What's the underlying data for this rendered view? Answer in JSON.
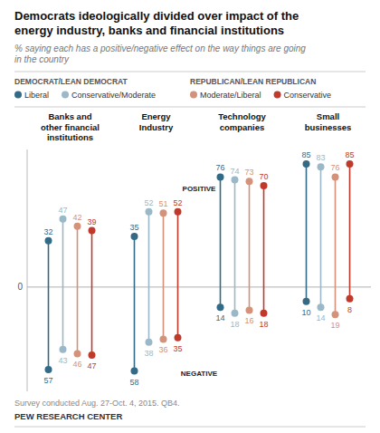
{
  "chart_data": {
    "type": "dumbbell",
    "title": "Democrats ideologically divided over impact of the\nenergy industry, banks and financial institutions",
    "subtitle": "% saying each has a positive/negative effect on the way things are going\nin the country",
    "footnote": "Survey conducted Aug. 27-Oct. 4, 2015. QB4.",
    "source": "PEW RESEARCH CENTER",
    "categories": [
      "Banks and\nother financial\ninstitutions",
      "Energy\nIndustry",
      "Technology\ncompanies",
      "Small\nbusinesses"
    ],
    "series": [
      {
        "name": "Liberal",
        "group": "DEMOCRAT/LEAN DEMOCRAT",
        "color": "#336b87",
        "values": [
          32,
          35,
          76,
          85
        ],
        "negative_values": [
          -57,
          -58,
          -14,
          -10
        ],
        "negative_value_labels": [
          "57",
          "58",
          "14",
          "10"
        ]
      },
      {
        "name": "Conservative/Moderate",
        "group": "DEMOCRAT/LEAN DEMOCRAT",
        "color": "#9ab8c7",
        "values": [
          47,
          52,
          74,
          83
        ],
        "negative_values": [
          -43,
          -38,
          -18,
          -14
        ],
        "negative_value_labels": [
          "43",
          "38",
          "18",
          "14"
        ]
      },
      {
        "name": "Moderate/Liberal",
        "group": "REPUBLICAN/LEAN REPUBLICAN",
        "color": "#d4927a",
        "values": [
          42,
          51,
          73,
          76
        ],
        "negative_values": [
          -46,
          -36,
          -16,
          -19
        ],
        "negative_value_labels": [
          "46",
          "36",
          "16",
          "19"
        ]
      },
      {
        "name": "Conservative",
        "group": "REPUBLICAN/LEAN REPUBLICAN",
        "color": "#c0392b",
        "values": [
          39,
          52,
          70,
          85
        ],
        "negative_values": [
          -47,
          -35,
          -18,
          -8
        ],
        "negative_value_labels": [
          "47",
          "35",
          "18",
          "8"
        ]
      }
    ],
    "annotations": [
      "POSITIVE",
      "NEGATIVE"
    ],
    "ylim": [
      -72,
      95
    ],
    "yticks": [
      0
    ],
    "grid": false,
    "legend": "top",
    "data_labels": true,
    "tick_labels": "y"
  }
}
